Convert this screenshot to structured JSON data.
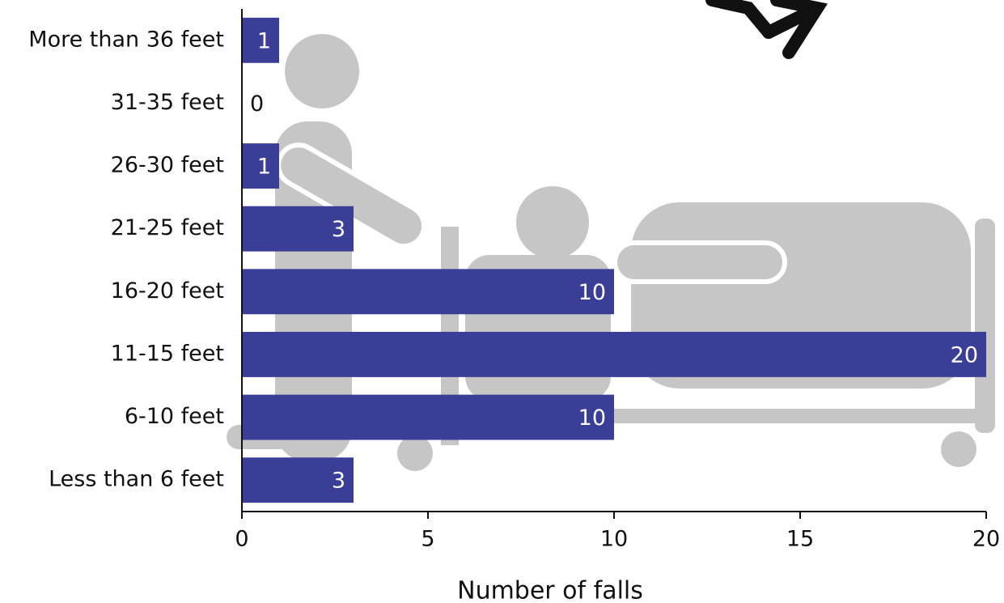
{
  "chart_data": {
    "type": "bar",
    "orientation": "horizontal",
    "x_label": "Number of falls",
    "categories": [
      "More than 36 feet",
      "31-35 feet",
      "26-30 feet",
      "21-25 feet",
      "16-20 feet",
      "11-15 feet",
      "6-10 feet",
      "Less than 6 feet"
    ],
    "values": [
      1,
      0,
      1,
      3,
      10,
      20,
      10,
      3
    ],
    "color": "#3b3e96",
    "xlim": [
      0,
      20
    ],
    "xticks": [
      0,
      5,
      10,
      15,
      20
    ]
  }
}
